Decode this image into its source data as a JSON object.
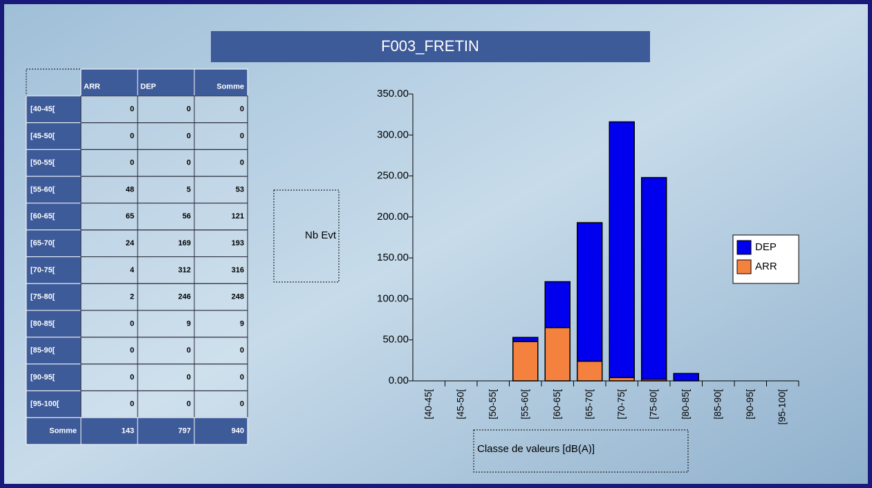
{
  "chart_data": {
    "type": "bar",
    "stacked": true,
    "title": "F003_FRETIN",
    "y_label": "Nb Evt",
    "x_label": "Classe de valeurs [dB(A)]",
    "categories": [
      "[40-45[",
      "[45-50[",
      "[50-55[",
      "[55-60[",
      "[60-65[",
      "[65-70[",
      "[70-75[",
      "[75-80[",
      "[80-85[",
      "[85-90[",
      "[90-95[",
      "[95-100["
    ],
    "series": [
      {
        "name": "DEP",
        "color": "#0000ee",
        "values": [
          0,
          0,
          0,
          5,
          56,
          169,
          312,
          246,
          9,
          0,
          0,
          0
        ]
      },
      {
        "name": "ARR",
        "color": "#f5813f",
        "values": [
          0,
          0,
          0,
          48,
          65,
          24,
          4,
          2,
          0,
          0,
          0,
          0
        ]
      }
    ],
    "stack_order": [
      1,
      0
    ],
    "ylim": [
      0,
      350
    ],
    "yticks": [
      {
        "value": 0,
        "label": "0.00"
      },
      {
        "value": 50,
        "label": "50.00"
      },
      {
        "value": 100,
        "label": "100.00"
      },
      {
        "value": 150,
        "label": "150.00"
      },
      {
        "value": 200,
        "label": "200.00"
      },
      {
        "value": 250,
        "label": "250.00"
      },
      {
        "value": 300,
        "label": "300.00"
      },
      {
        "value": 350,
        "label": "350.00"
      }
    ],
    "legend": "right"
  },
  "table": {
    "header_somme": "Somme",
    "somme": [
      0,
      0,
      0,
      53,
      121,
      193,
      316,
      248,
      9,
      0,
      0,
      0
    ],
    "total_label": "Somme",
    "totals": [
      143,
      797,
      940
    ]
  }
}
